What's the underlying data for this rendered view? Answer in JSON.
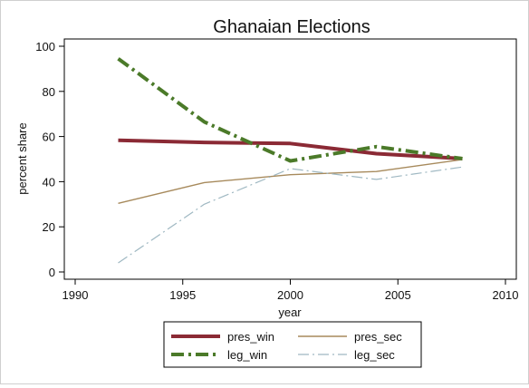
{
  "chart_data": {
    "type": "line",
    "title": "Ghanaian Elections",
    "xlabel": "year",
    "ylabel": "percent share",
    "xlim": [
      1990,
      2010
    ],
    "ylim": [
      0,
      100
    ],
    "xticks": [
      1990,
      1995,
      2000,
      2005,
      2010
    ],
    "yticks": [
      0,
      20,
      40,
      60,
      80,
      100
    ],
    "grid": false,
    "legend_position": "bottom",
    "x": [
      1992,
      1996,
      2000,
      2004,
      2008
    ],
    "series": [
      {
        "name": "pres_win",
        "values": [
          58.3,
          57.4,
          56.9,
          52.4,
          50.2
        ],
        "color": "#8b2a35",
        "style": "solid-thick"
      },
      {
        "name": "pres_sec",
        "values": [
          30.4,
          39.6,
          43.1,
          44.5,
          49.8
        ],
        "color": "#a78a5c",
        "style": "solid-thin"
      },
      {
        "name": "leg_win",
        "values": [
          94.5,
          66.5,
          49.2,
          55.5,
          50.2
        ],
        "color": "#4b7a29",
        "style": "dashdot-thick"
      },
      {
        "name": "leg_sec",
        "values": [
          4.0,
          30.0,
          45.8,
          41.0,
          46.5
        ],
        "color": "#9fb8c2",
        "style": "dashdot-thin"
      }
    ]
  }
}
